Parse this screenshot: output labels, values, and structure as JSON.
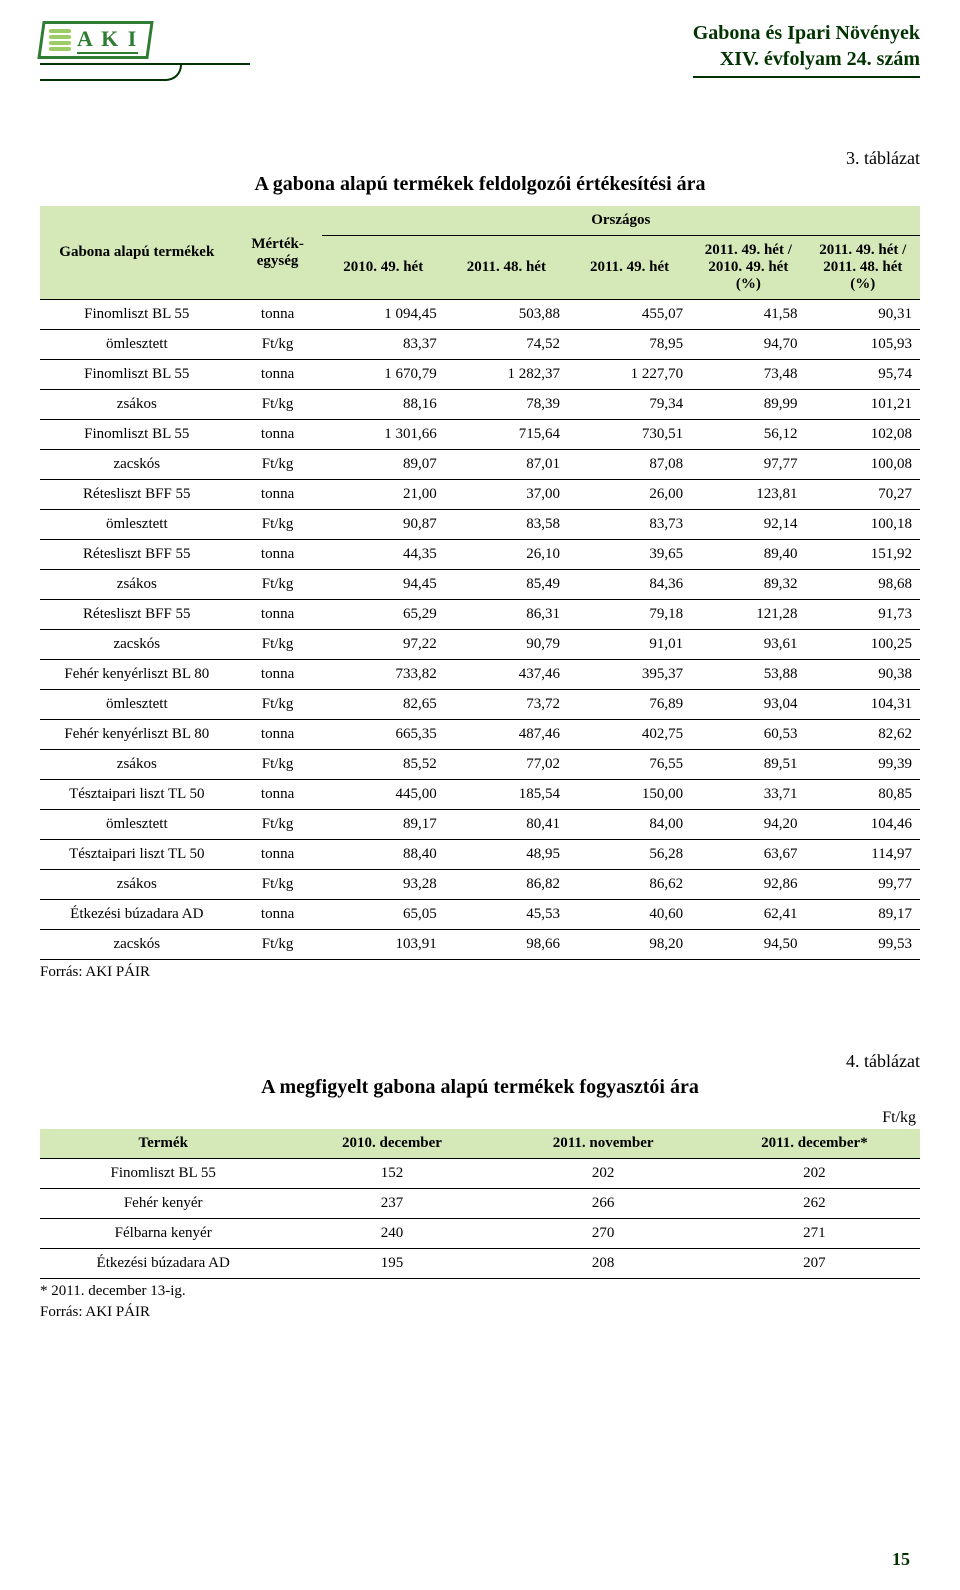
{
  "header": {
    "logo_letters": "A K I",
    "title_line1": "Gabona és Ipari Növények",
    "title_line2": "XIV. évfolyam 24. szám"
  },
  "table1": {
    "label": "3. táblázat",
    "title": "A gabona alapú termékek feldolgozói értékesítési ára",
    "group_header": "Országos",
    "columns": [
      "Gabona alapú termékek",
      "Mérték-egység",
      "2010. 49. hét",
      "2011. 48. hét",
      "2011. 49. hét",
      "2011. 49. hét / 2010. 49. hét (%)",
      "2011. 49. hét / 2011. 48. hét (%)"
    ],
    "rows": [
      [
        "Finomliszt BL 55",
        "tonna",
        "1 094,45",
        "503,88",
        "455,07",
        "41,58",
        "90,31"
      ],
      [
        "ömlesztett",
        "Ft/kg",
        "83,37",
        "74,52",
        "78,95",
        "94,70",
        "105,93"
      ],
      [
        "Finomliszt BL 55",
        "tonna",
        "1 670,79",
        "1 282,37",
        "1 227,70",
        "73,48",
        "95,74"
      ],
      [
        "zsákos",
        "Ft/kg",
        "88,16",
        "78,39",
        "79,34",
        "89,99",
        "101,21"
      ],
      [
        "Finomliszt BL 55",
        "tonna",
        "1 301,66",
        "715,64",
        "730,51",
        "56,12",
        "102,08"
      ],
      [
        "zacskós",
        "Ft/kg",
        "89,07",
        "87,01",
        "87,08",
        "97,77",
        "100,08"
      ],
      [
        "Rétesliszt BFF 55",
        "tonna",
        "21,00",
        "37,00",
        "26,00",
        "123,81",
        "70,27"
      ],
      [
        "ömlesztett",
        "Ft/kg",
        "90,87",
        "83,58",
        "83,73",
        "92,14",
        "100,18"
      ],
      [
        "Rétesliszt BFF 55",
        "tonna",
        "44,35",
        "26,10",
        "39,65",
        "89,40",
        "151,92"
      ],
      [
        "zsákos",
        "Ft/kg",
        "94,45",
        "85,49",
        "84,36",
        "89,32",
        "98,68"
      ],
      [
        "Rétesliszt BFF 55",
        "tonna",
        "65,29",
        "86,31",
        "79,18",
        "121,28",
        "91,73"
      ],
      [
        "zacskós",
        "Ft/kg",
        "97,22",
        "90,79",
        "91,01",
        "93,61",
        "100,25"
      ],
      [
        "Fehér kenyérliszt BL 80",
        "tonna",
        "733,82",
        "437,46",
        "395,37",
        "53,88",
        "90,38"
      ],
      [
        "ömlesztett",
        "Ft/kg",
        "82,65",
        "73,72",
        "76,89",
        "93,04",
        "104,31"
      ],
      [
        "Fehér kenyérliszt BL 80",
        "tonna",
        "665,35",
        "487,46",
        "402,75",
        "60,53",
        "82,62"
      ],
      [
        "zsákos",
        "Ft/kg",
        "85,52",
        "77,02",
        "76,55",
        "89,51",
        "99,39"
      ],
      [
        "Tésztaipari liszt TL 50",
        "tonna",
        "445,00",
        "185,54",
        "150,00",
        "33,71",
        "80,85"
      ],
      [
        "ömlesztett",
        "Ft/kg",
        "89,17",
        "80,41",
        "84,00",
        "94,20",
        "104,46"
      ],
      [
        "Tésztaipari liszt TL 50",
        "tonna",
        "88,40",
        "48,95",
        "56,28",
        "63,67",
        "114,97"
      ],
      [
        "zsákos",
        "Ft/kg",
        "93,28",
        "86,82",
        "86,62",
        "92,86",
        "99,77"
      ],
      [
        "Étkezési búzadara AD",
        "tonna",
        "65,05",
        "45,53",
        "40,60",
        "62,41",
        "89,17"
      ],
      [
        "zacskós",
        "Ft/kg",
        "103,91",
        "98,66",
        "98,20",
        "94,50",
        "99,53"
      ]
    ],
    "col_widths": [
      "22%",
      "10%",
      "14%",
      "14%",
      "14%",
      "13%",
      "13%"
    ],
    "header_bg": "#d5e8b8",
    "source": "Forrás: AKI PÁIR"
  },
  "table2": {
    "label": "4. táblázat",
    "title": "A megfigyelt gabona alapú termékek fogyasztói ára",
    "unit": "Ft/kg",
    "columns": [
      "Termék",
      "2010. december",
      "2011. november",
      "2011. december*"
    ],
    "rows": [
      [
        "Finomliszt BL 55",
        "152",
        "202",
        "202"
      ],
      [
        "Fehér kenyér",
        "237",
        "266",
        "262"
      ],
      [
        "Félbarna kenyér",
        "240",
        "270",
        "271"
      ],
      [
        "Étkezési búzadara AD",
        "195",
        "208",
        "207"
      ]
    ],
    "col_widths": [
      "28%",
      "24%",
      "24%",
      "24%"
    ],
    "header_bg": "#d5e8b8",
    "footnote": "* 2011. december 13-ig.",
    "source": "Forrás: AKI PÁIR"
  },
  "page_number": "15",
  "colors": {
    "header_green": "#2e7d32",
    "dark_green": "#003300",
    "table_header_bg": "#d5e8b8",
    "text": "#000000",
    "bg": "#ffffff"
  }
}
